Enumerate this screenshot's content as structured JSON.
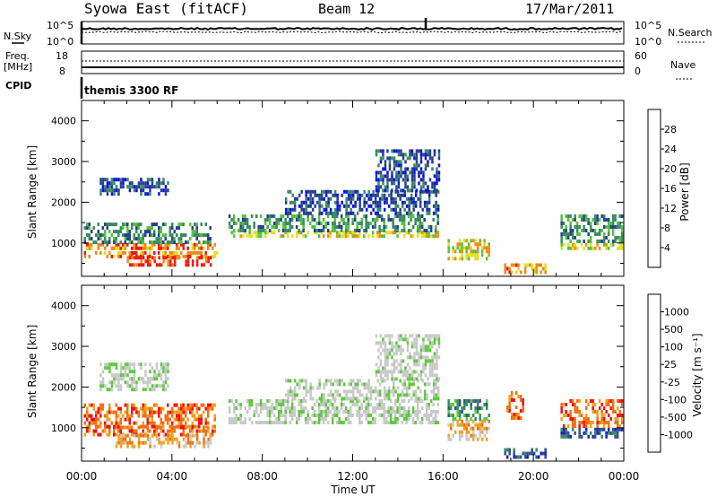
{
  "header": {
    "station": "Syowa East (fitACF)",
    "beam": "Beam 12",
    "date": "17/Mar/2011"
  },
  "noise_panel": {
    "left_label": "N.Sky",
    "right_label": "N.Search",
    "yticks_left": [
      "10^5",
      "10^0"
    ],
    "yticks_right": [
      "10^5",
      "10^0"
    ]
  },
  "freq_panel": {
    "left_label_1": "Freq.",
    "left_label_2": "[MHz]",
    "right_label": "Nave",
    "yticks_left": [
      "18",
      "8"
    ],
    "yticks_right": [
      "60",
      "0"
    ]
  },
  "cpid": {
    "label": "CPID",
    "value": "themis 3300 RF"
  },
  "chart_data": [
    {
      "type": "heatmap",
      "name": "power",
      "ylabel": "Slant Range [km]",
      "ylim": [
        180,
        4500
      ],
      "yticks": [
        1000,
        2000,
        3000,
        4000
      ],
      "colorbar_label": "Power [dB]",
      "colorbar_ticks": [
        "4",
        "8",
        "12",
        "16",
        "20",
        "24",
        "28"
      ],
      "colors": [
        "#0a10e0",
        "#24408c",
        "#3a8a60",
        "#56c040",
        "#e0e020",
        "#f08a10",
        "#e81a10",
        "#f8180c"
      ],
      "echo_regions": [
        {
          "t0": 0.1,
          "t1": 6.0,
          "r0": 850,
          "r1": 1000,
          "level": 5
        },
        {
          "t0": 0.1,
          "t1": 6.0,
          "r0": 650,
          "r1": 800,
          "level": 5
        },
        {
          "t0": 2.0,
          "t1": 5.7,
          "r0": 500,
          "r1": 680,
          "level": 6
        },
        {
          "t0": 0.1,
          "t1": 5.7,
          "r0": 1050,
          "r1": 1500,
          "level": 2
        },
        {
          "t0": 0.8,
          "t1": 3.8,
          "r0": 2200,
          "r1": 2600,
          "level": 1
        },
        {
          "t0": 6.5,
          "t1": 15.8,
          "r0": 1150,
          "r1": 1300,
          "level": 4
        },
        {
          "t0": 6.5,
          "t1": 15.8,
          "r0": 1300,
          "r1": 1700,
          "level": 2
        },
        {
          "t0": 9.0,
          "t1": 15.8,
          "r0": 1700,
          "r1": 2300,
          "level": 1
        },
        {
          "t0": 13.0,
          "t1": 15.8,
          "r0": 2300,
          "r1": 3300,
          "level": 1
        },
        {
          "t0": 16.2,
          "t1": 18.0,
          "r0": 600,
          "r1": 1100,
          "level": 4
        },
        {
          "t0": 18.7,
          "t1": 20.5,
          "r0": 250,
          "r1": 500,
          "level": 5
        },
        {
          "t0": 21.2,
          "t1": 23.9,
          "r0": 850,
          "r1": 1000,
          "level": 4
        },
        {
          "t0": 21.2,
          "t1": 23.9,
          "r0": 1000,
          "r1": 1700,
          "level": 2
        }
      ]
    },
    {
      "type": "heatmap",
      "name": "velocity",
      "ylabel": "Slant Range [km]",
      "ylim": [
        180,
        4500
      ],
      "yticks": [
        1000,
        2000,
        3000,
        4000
      ],
      "colorbar_label": "Velocity [m s⁻¹]",
      "colorbar_ticks": [
        "1000",
        "500",
        "100",
        "25",
        "-25",
        "-100",
        "-500",
        "-1000"
      ],
      "colors": [
        "#1420b8",
        "#30508c",
        "#3a8a5c",
        "#5cc83c",
        "#c8c8c8",
        "#c8c8c8",
        "#f0a020",
        "#f07010",
        "#f01010"
      ],
      "echo_regions": [
        {
          "t0": 0.1,
          "t1": 5.9,
          "r0": 850,
          "r1": 1050,
          "level": 7
        },
        {
          "t0": 0.1,
          "t1": 5.9,
          "r0": 1050,
          "r1": 1600,
          "level": 7
        },
        {
          "t0": 1.5,
          "t1": 5.7,
          "r0": 500,
          "r1": 850,
          "level": 6
        },
        {
          "t0": 0.8,
          "t1": 3.8,
          "r0": 1900,
          "r1": 2600,
          "level": 4
        },
        {
          "t0": 6.5,
          "t1": 15.8,
          "r0": 1100,
          "r1": 1700,
          "level": 4
        },
        {
          "t0": 9.0,
          "t1": 15.8,
          "r0": 1700,
          "r1": 2200,
          "level": 4
        },
        {
          "t0": 13.0,
          "t1": 15.8,
          "r0": 2200,
          "r1": 3300,
          "level": 4
        },
        {
          "t0": 16.2,
          "t1": 18.0,
          "r0": 700,
          "r1": 1200,
          "level": 6
        },
        {
          "t0": 16.2,
          "t1": 18.0,
          "r0": 1200,
          "r1": 1700,
          "level": 2
        },
        {
          "t0": 18.7,
          "t1": 20.5,
          "r0": 250,
          "r1": 500,
          "level": 1
        },
        {
          "t0": 18.8,
          "t1": 19.5,
          "r0": 1200,
          "r1": 1900,
          "level": 7
        },
        {
          "t0": 21.2,
          "t1": 23.9,
          "r0": 800,
          "r1": 1000,
          "level": 1
        },
        {
          "t0": 21.2,
          "t1": 23.9,
          "r0": 1000,
          "r1": 1700,
          "level": 7
        }
      ]
    }
  ],
  "x_axis": {
    "label": "Time UT",
    "tick_labels": [
      "00:00",
      "04:00",
      "08:00",
      "12:00",
      "16:00",
      "20:00",
      "00:00"
    ],
    "hours": [
      0,
      4,
      8,
      12,
      16,
      20,
      24
    ]
  }
}
